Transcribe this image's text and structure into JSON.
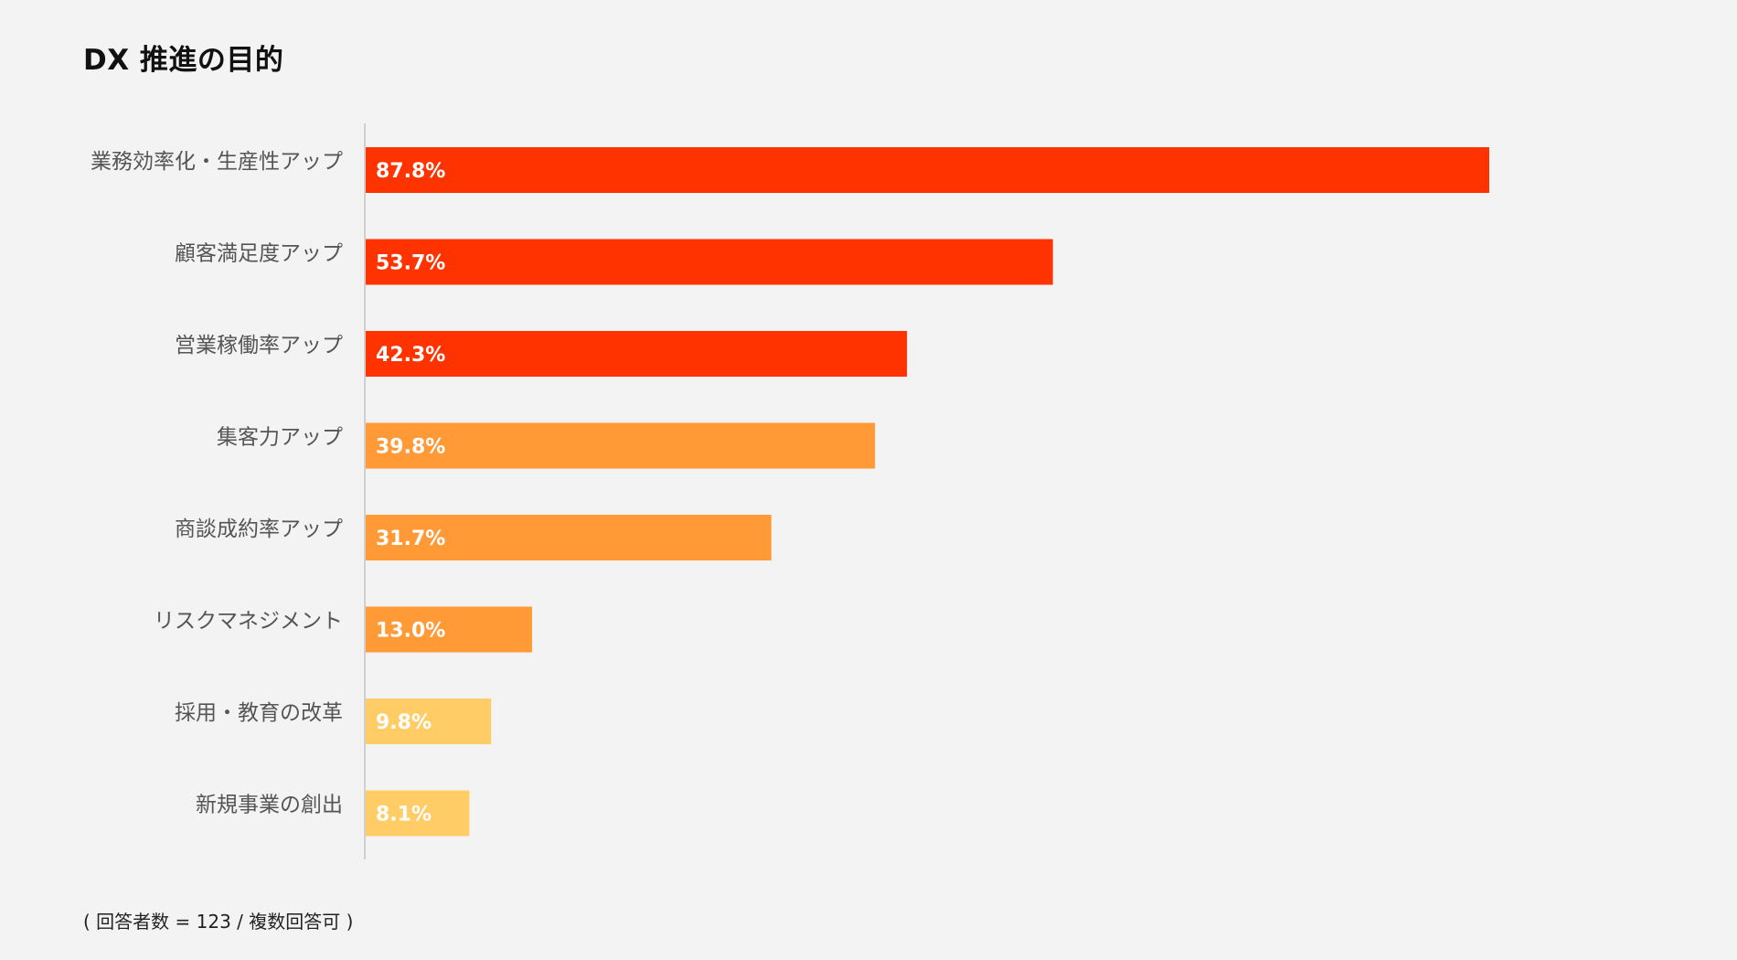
{
  "chart_data": {
    "type": "bar",
    "orientation": "horizontal",
    "title": "DX 推進の目的",
    "categories": [
      "業務効率化・生産性アップ",
      "顧客満足度アップ",
      "営業稼働率アップ",
      "集客力アップ",
      "商談成約率アップ",
      "リスクマネジメント",
      "採用・教育の改革",
      "新規事業の創出"
    ],
    "values": [
      87.8,
      53.7,
      42.3,
      39.8,
      31.7,
      13.0,
      9.8,
      8.1
    ],
    "value_labels": [
      "87.8%",
      "53.7%",
      "42.3%",
      "39.8%",
      "31.7%",
      "13.0%",
      "9.8%",
      "8.1%"
    ],
    "unit": "%",
    "xlim": [
      0,
      100
    ],
    "grid": false,
    "bar_colors": [
      "#ff3300",
      "#ff3300",
      "#ff3300",
      "#ff9a36",
      "#ff9a36",
      "#ff9a36",
      "#ffcc66",
      "#ffcc66"
    ],
    "footnote": "( 回答者数 = 123 / 複数回答可 )"
  }
}
